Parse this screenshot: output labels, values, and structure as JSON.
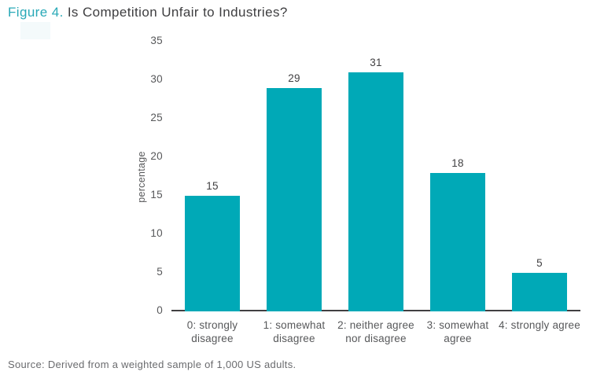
{
  "title": {
    "prefix": "Figure 4.",
    "text": "Is Competition Unfair to Industries?"
  },
  "source": "Source: Derived from a weighted sample of 1,000 US adults.",
  "colors": {
    "accent_teal": "#00a9b7",
    "title_prefix": "#29a9b7",
    "title_text": "#3e3e40",
    "tick_gray": "#57585a",
    "value_label": "#414042",
    "axis_line": "#414042",
    "source_gray": "#6a6b6e",
    "background": "#ffffff"
  },
  "chart_data": {
    "type": "bar",
    "title": "Figure 4. Is Competition Unfair to Industries?",
    "categories": [
      "0: strongly disagree",
      "1: somewhat disagree",
      "2: neither agree nor disagree",
      "3: somewhat agree",
      "4: strongly agree"
    ],
    "category_lines": [
      [
        "0: strongly",
        "disagree"
      ],
      [
        "1: somewhat",
        "disagree"
      ],
      [
        "2: neither agree",
        "nor disagree"
      ],
      [
        "3: somewhat",
        "agree"
      ],
      [
        "4: strongly agree"
      ]
    ],
    "values": [
      15,
      29,
      31,
      18,
      5
    ],
    "value_labels_shown": true,
    "xlabel": "",
    "ylabel": "percentage",
    "ylim": [
      0,
      35
    ],
    "yticks": [
      0,
      5,
      10,
      15,
      20,
      25,
      30,
      35
    ],
    "grid": false,
    "legend": false,
    "bar_color": "#00a9b7"
  }
}
